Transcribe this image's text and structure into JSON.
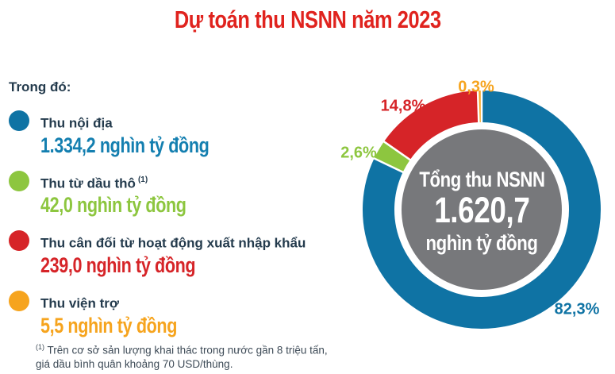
{
  "title": "Dự toán thu NSNN năm 2023",
  "legend": {
    "heading": "Trong đó:",
    "items": [
      {
        "label": "Thu nội địa",
        "sup": "",
        "value": "1.334,2 nghìn tỷ đồng",
        "color": "#0f73a4",
        "value_color": "#147fb0"
      },
      {
        "label": "Thu từ dầu thô",
        "sup": "(1)",
        "value": "42,0 nghìn tỷ đồng",
        "color": "#8dc63f",
        "value_color": "#8dc63f"
      },
      {
        "label": "Thu cân đối từ hoạt động xuất nhập khẩu",
        "sup": "",
        "value": "239,0 nghìn tỷ đồng",
        "color": "#d62428",
        "value_color": "#d62428"
      },
      {
        "label": "Thu viện trợ",
        "sup": "",
        "value": "5,5 nghìn tỷ đồng",
        "color": "#f6a41e",
        "value_color": "#f6a41e"
      }
    ]
  },
  "donut": {
    "center": {
      "line1": "Tổng thu NSNN",
      "value": "1.620,7",
      "unit": "nghìn tỷ đồng"
    }
  },
  "footnote": {
    "sup": "(1)",
    "line1": "Trên cơ sở sản lượng khai thác trong nước gần 8 triệu tấn,",
    "line2": "giá dầu bình quân khoảng 70 USD/thùng."
  },
  "colors": {
    "title": "#e0231e",
    "label_navy": "#243b4d",
    "footnote": "#3e4b57",
    "center_disc": "#77787b",
    "separator": "#ffffff",
    "background": "#ffffff"
  },
  "chart_data": {
    "type": "pie",
    "subtype": "donut",
    "title": "Dự toán thu NSNN năm 2023",
    "unit": "nghìn tỷ đồng",
    "total": {
      "label": "Tổng thu NSNN",
      "value": 1620.7,
      "display": "1.620,7 nghìn tỷ đồng"
    },
    "start_angle_deg": -90,
    "direction": "clockwise",
    "legend_position": "left",
    "segments": [
      {
        "name": "Thu nội địa",
        "value": 1334.2,
        "percent": 82.3,
        "percent_label": "82,3%",
        "color": "#0f73a4"
      },
      {
        "name": "Thu từ dầu thô",
        "value": 42.0,
        "percent": 2.6,
        "percent_label": "2,6%",
        "color": "#8dc63f"
      },
      {
        "name": "Thu cân đối từ hoạt động xuất nhập khẩu",
        "value": 239.0,
        "percent": 14.8,
        "percent_label": "14,8%",
        "color": "#d62428"
      },
      {
        "name": "Thu viện trợ",
        "value": 5.5,
        "percent": 0.3,
        "percent_label": "0,3%",
        "color": "#f6a41e"
      }
    ]
  }
}
